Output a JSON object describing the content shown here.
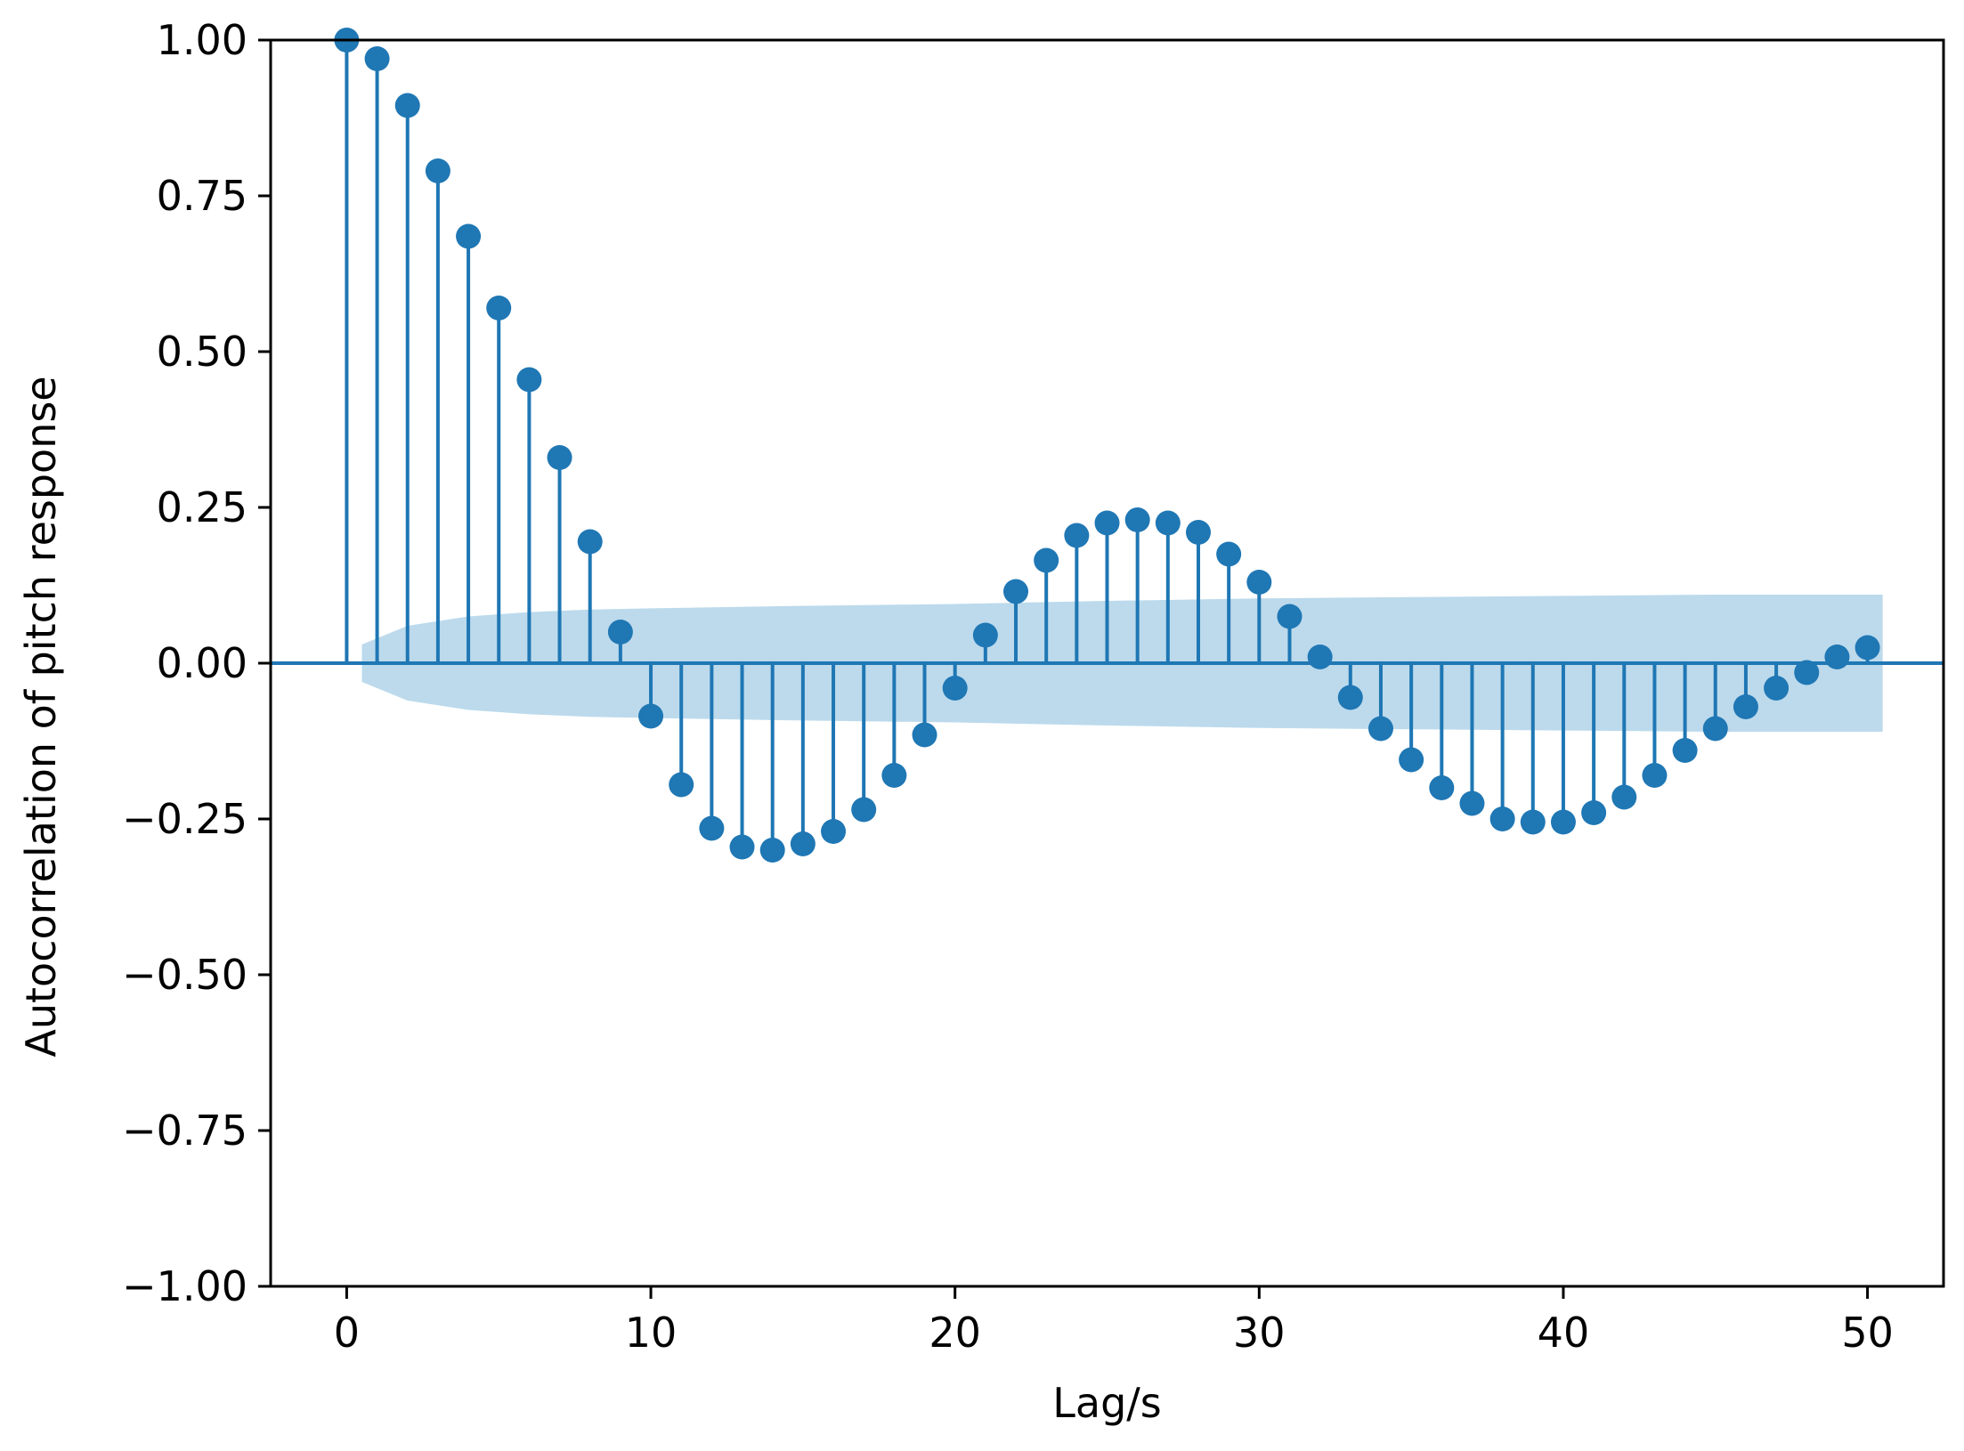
{
  "chart_data": {
    "type": "stem",
    "title": "",
    "xlabel": "Lag/s",
    "ylabel": "Autocorrelation of pitch response",
    "xlim": [
      -2.5,
      52.5
    ],
    "ylim": [
      -1.0,
      1.0
    ],
    "grid": false,
    "x_ticks": [
      {
        "value": 0,
        "label": "0"
      },
      {
        "value": 10,
        "label": "10"
      },
      {
        "value": 20,
        "label": "20"
      },
      {
        "value": 30,
        "label": "30"
      },
      {
        "value": 40,
        "label": "40"
      },
      {
        "value": 50,
        "label": "50"
      }
    ],
    "y_ticks": [
      {
        "value": 1.0,
        "label": "1.00"
      },
      {
        "value": 0.75,
        "label": "0.75"
      },
      {
        "value": 0.5,
        "label": "0.50"
      },
      {
        "value": 0.25,
        "label": "0.25"
      },
      {
        "value": 0.0,
        "label": "0.00"
      },
      {
        "value": -0.25,
        "label": "−0.25"
      },
      {
        "value": -0.5,
        "label": "−0.50"
      },
      {
        "value": -0.75,
        "label": "−0.75"
      },
      {
        "value": -1.0,
        "label": "−1.00"
      }
    ],
    "lags": [
      0,
      1,
      2,
      3,
      4,
      5,
      6,
      7,
      8,
      9,
      10,
      11,
      12,
      13,
      14,
      15,
      16,
      17,
      18,
      19,
      20,
      21,
      22,
      23,
      24,
      25,
      26,
      27,
      28,
      29,
      30,
      31,
      32,
      33,
      34,
      35,
      36,
      37,
      38,
      39,
      40,
      41,
      42,
      43,
      44,
      45,
      46,
      47,
      48,
      49,
      50
    ],
    "values": [
      1.0,
      0.97,
      0.895,
      0.79,
      0.685,
      0.57,
      0.455,
      0.33,
      0.195,
      0.05,
      -0.085,
      -0.195,
      -0.265,
      -0.295,
      -0.3,
      -0.29,
      -0.27,
      -0.235,
      -0.18,
      -0.115,
      -0.04,
      0.045,
      0.115,
      0.165,
      0.205,
      0.225,
      0.23,
      0.225,
      0.21,
      0.175,
      0.13,
      0.075,
      0.01,
      -0.055,
      -0.105,
      -0.155,
      -0.2,
      -0.225,
      -0.25,
      -0.255,
      -0.255,
      -0.24,
      -0.215,
      -0.18,
      -0.14,
      -0.105,
      -0.07,
      -0.04,
      -0.015,
      0.01,
      0.025
    ],
    "confidence_band": {
      "lags": [
        0.5,
        2,
        4,
        6,
        8,
        10,
        15,
        20,
        25,
        30,
        35,
        40,
        45,
        50.5
      ],
      "upper": [
        0.03,
        0.06,
        0.075,
        0.082,
        0.086,
        0.088,
        0.092,
        0.095,
        0.1,
        0.104,
        0.106,
        0.108,
        0.11,
        0.11
      ],
      "lower": [
        -0.03,
        -0.06,
        -0.075,
        -0.082,
        -0.086,
        -0.088,
        -0.092,
        -0.095,
        -0.1,
        -0.104,
        -0.106,
        -0.108,
        -0.11,
        -0.11
      ]
    },
    "colors": {
      "stem": "#1f77b4",
      "marker": "#1f77b4",
      "band": "#a6cde6",
      "baseline": "#1f77b4",
      "axes": "#000000"
    }
  }
}
